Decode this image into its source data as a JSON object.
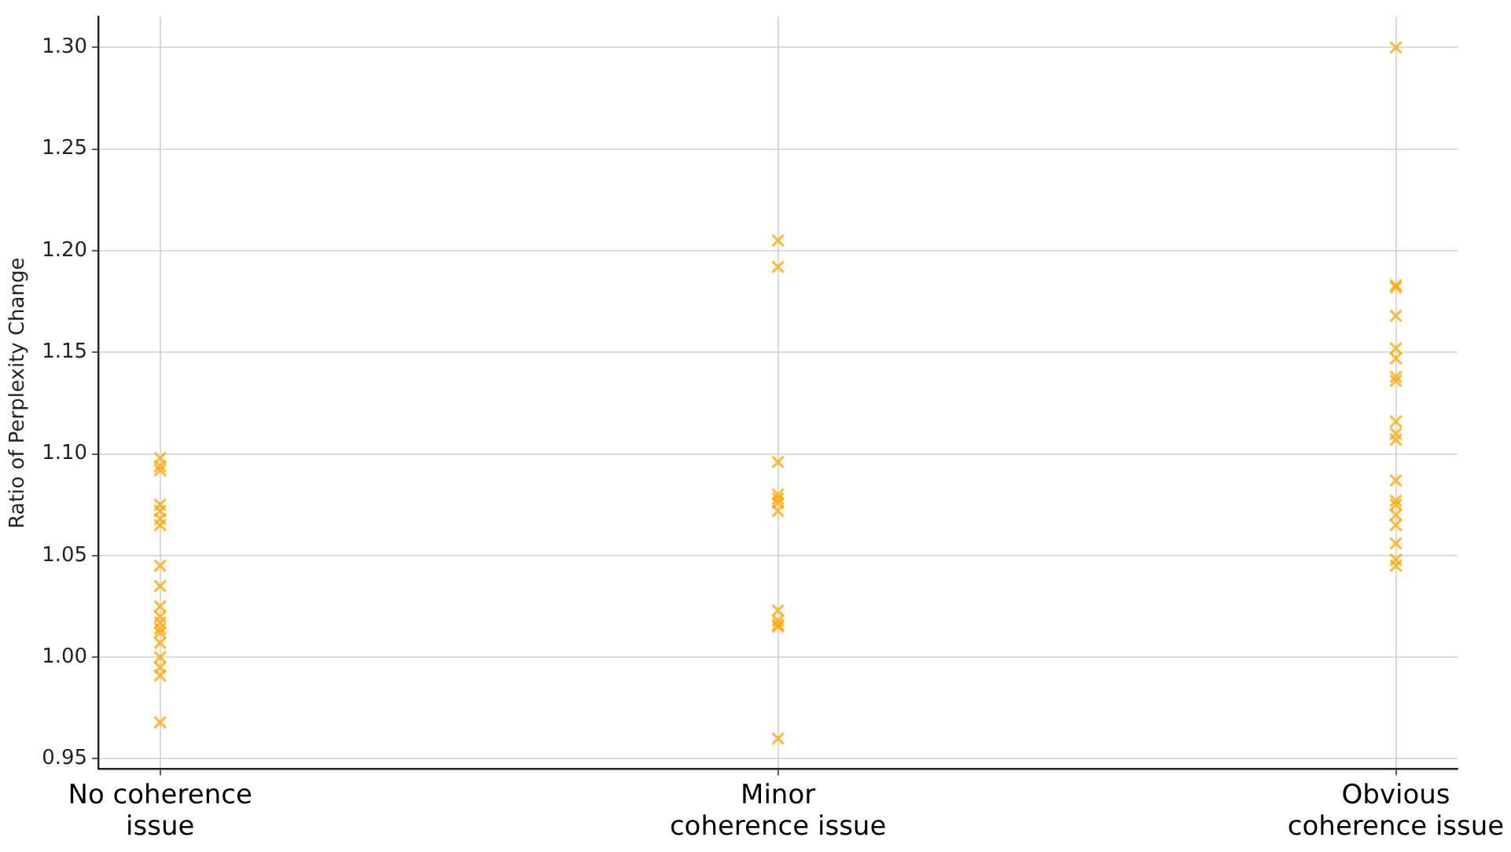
{
  "chart_data": {
    "type": "scatter",
    "ylabel": "Ratio of Perplexity Change",
    "categories": [
      "No coherence issue",
      "Minor coherence issue",
      "Obvious coherence issue"
    ],
    "series": [
      {
        "color": "#ffa500",
        "x": [
          "No coherence issue",
          "No coherence issue",
          "No coherence issue",
          "No coherence issue",
          "No coherence issue",
          "No coherence issue",
          "No coherence issue",
          "No coherence issue",
          "No coherence issue",
          "No coherence issue",
          "No coherence issue",
          "No coherence issue",
          "No coherence issue",
          "No coherence issue",
          "No coherence issue",
          "No coherence issue",
          "No coherence issue",
          "No coherence issue",
          "No coherence issue",
          "Minor coherence issue",
          "Minor coherence issue",
          "Minor coherence issue",
          "Minor coherence issue",
          "Minor coherence issue",
          "Minor coherence issue",
          "Minor coherence issue",
          "Minor coherence issue",
          "Minor coherence issue",
          "Minor coherence issue",
          "Minor coherence issue",
          "Minor coherence issue",
          "Obvious coherence issue",
          "Obvious coherence issue",
          "Obvious coherence issue",
          "Obvious coherence issue",
          "Obvious coherence issue",
          "Obvious coherence issue",
          "Obvious coherence issue",
          "Obvious coherence issue",
          "Obvious coherence issue",
          "Obvious coherence issue",
          "Obvious coherence issue",
          "Obvious coherence issue",
          "Obvious coherence issue",
          "Obvious coherence issue",
          "Obvious coherence issue",
          "Obvious coherence issue",
          "Obvious coherence issue",
          "Obvious coherence issue",
          "Obvious coherence issue"
        ],
        "values": [
          1.098,
          1.094,
          1.092,
          1.075,
          1.072,
          1.068,
          1.065,
          1.045,
          1.035,
          1.025,
          1.02,
          1.017,
          1.014,
          1.012,
          1.007,
          1.0,
          0.995,
          0.991,
          0.968,
          1.205,
          1.192,
          1.096,
          1.08,
          1.078,
          1.076,
          1.072,
          1.023,
          1.018,
          1.016,
          1.015,
          0.96,
          1.3,
          1.183,
          1.182,
          1.168,
          1.152,
          1.147,
          1.138,
          1.136,
          1.116,
          1.11,
          1.107,
          1.087,
          1.077,
          1.075,
          1.07,
          1.065,
          1.056,
          1.048,
          1.045
        ]
      }
    ],
    "ylim": [
      0.945,
      1.315
    ],
    "yticks": [
      {
        "value": 0.95,
        "label": "0.95"
      },
      {
        "value": 1.0,
        "label": "1.00"
      },
      {
        "value": 1.05,
        "label": "1.05"
      },
      {
        "value": 1.1,
        "label": "1.10"
      },
      {
        "value": 1.15,
        "label": "1.15"
      },
      {
        "value": 1.2,
        "label": "1.20"
      },
      {
        "value": 1.25,
        "label": "1.25"
      },
      {
        "value": 1.3,
        "label": "1.30"
      }
    ],
    "grid": true,
    "marker": "cross",
    "legend": false
  }
}
